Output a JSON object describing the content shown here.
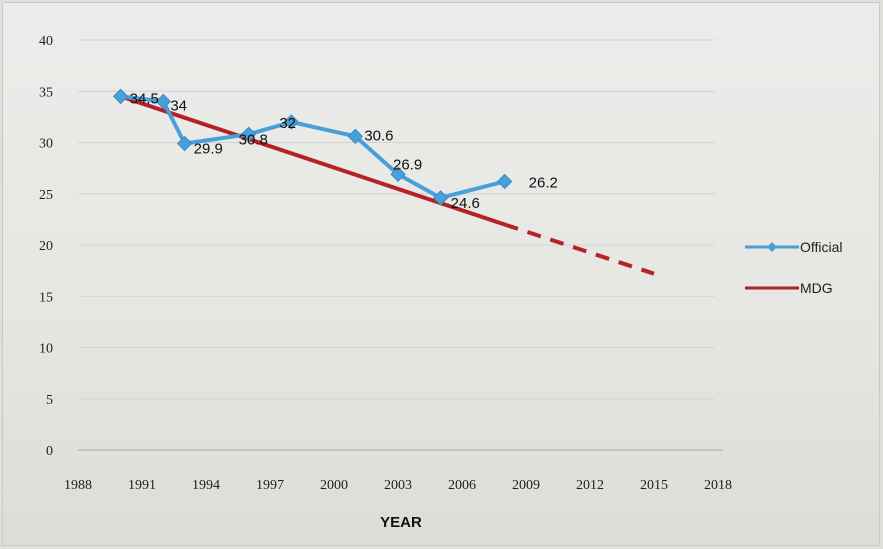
{
  "chart_data": {
    "type": "line",
    "title": "",
    "xlabel": "YEAR",
    "ylabel": "",
    "x_ticks": [
      "1988",
      "1991",
      "1994",
      "1997",
      "2000",
      "2003",
      "2006",
      "2009",
      "2012",
      "2015",
      "2018"
    ],
    "xlim": [
      1988,
      2018
    ],
    "y_ticks": [
      0,
      5,
      10,
      15,
      20,
      25,
      30,
      35,
      40
    ],
    "ylim": [
      0,
      40
    ],
    "grid": "horizontal",
    "legend": "right",
    "series": [
      {
        "name": "Official",
        "color": "#4a9fd8",
        "marker": "diamond",
        "x": [
          1990,
          1992,
          1993,
          1996,
          1998,
          2001,
          2003,
          2005,
          2008
        ],
        "values": [
          34.5,
          34,
          29.9,
          30.8,
          32,
          30.6,
          26.9,
          24.6,
          26.2
        ],
        "labels": [
          "34.5",
          "34",
          "29.9",
          "30.8",
          "32",
          "30.6",
          "26.9",
          "24.6",
          "26.2"
        ]
      },
      {
        "name": "MDG",
        "color": "#b5202a",
        "solid": {
          "x": [
            1990,
            2008
          ],
          "values": [
            34.5,
            22
          ]
        },
        "dashed": {
          "x": [
            2008,
            2015
          ],
          "values": [
            22,
            17.2
          ]
        }
      }
    ]
  }
}
